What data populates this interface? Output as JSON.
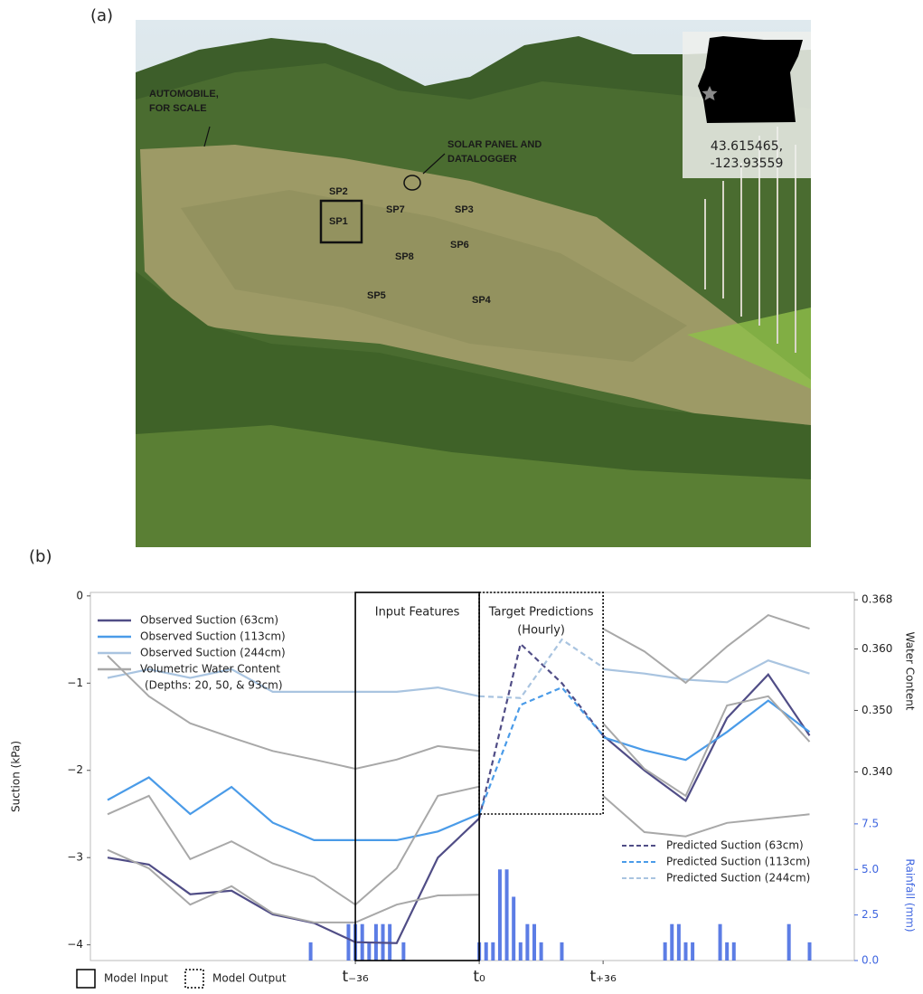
{
  "panel_a": {
    "label": "(a)",
    "annotations": [
      "AUTOMOBILE,",
      "FOR SCALE",
      "SOLAR PANEL AND",
      "DATALOGGER"
    ],
    "sites": [
      "SP2",
      "SP1",
      "SP7",
      "SP3",
      "SP6",
      "SP8",
      "SP5",
      "SP4"
    ],
    "inset": {
      "lat": "43.615465,",
      "lon": "-123.93559"
    }
  },
  "chart_data": {
    "type": "line",
    "panel_label": "(b)",
    "y_label": "Suction (kPa)",
    "y2_label": "Water Content",
    "y3_label": "Rainfall (mm)",
    "input_label": "Input Features",
    "output_label": [
      "Target Predictions",
      "(Hourly)"
    ],
    "model_legend": [
      "Model Input",
      "Model Output"
    ],
    "x": [
      -108,
      -96,
      -84,
      -72,
      -60,
      -48,
      -36,
      -24,
      -12,
      0,
      12,
      24,
      36,
      48,
      60,
      72,
      84,
      96
    ],
    "xlim": [
      -113,
      109
    ],
    "xticks": [
      {
        "value": -36,
        "label": "t₋₃₆"
      },
      {
        "value": 0,
        "label": "t₀"
      },
      {
        "value": 36,
        "label": "t₊₃₆"
      }
    ],
    "ylim": [
      -4.18,
      0.04
    ],
    "yticks": [
      {
        "value": -4,
        "label": "−4"
      },
      {
        "value": -3,
        "label": "−3"
      },
      {
        "value": -2,
        "label": "−2"
      },
      {
        "value": -1,
        "label": "−1"
      },
      0
    ],
    "y2lim": [
      0.3093,
      0.3692
    ],
    "y2ticks": [
      {
        "value": 0.34,
        "label": "0.340"
      },
      {
        "value": 0.35,
        "label": "0.350"
      },
      {
        "value": 0.36,
        "label": "0.360"
      },
      {
        "value": 0.368,
        "label": "0.368"
      }
    ],
    "y3lim": [
      0,
      20.2
    ],
    "y3ticks": [
      {
        "value": 0,
        "label": "0.0"
      },
      {
        "value": 2.5,
        "label": "2.5"
      },
      {
        "value": 5,
        "label": "5.0"
      },
      {
        "value": 7.5,
        "label": "7.5"
      }
    ],
    "series": [
      {
        "name": "Observed Suction (63cm)",
        "color": "#504d86",
        "values": [
          -3.0,
          -3.08,
          -3.42,
          -3.38,
          -3.65,
          -3.75,
          -3.97,
          -3.98,
          -3.0,
          -2.55,
          null,
          null,
          -1.6,
          -2.0,
          -2.35,
          -1.4,
          -0.9,
          -1.6
        ]
      },
      {
        "name": "Observed Suction (113cm)",
        "color": "#4a9be8",
        "values": [
          -2.34,
          -2.08,
          -2.5,
          -2.19,
          -2.6,
          -2.8,
          -2.8,
          -2.8,
          -2.7,
          -2.5,
          null,
          null,
          -1.62,
          -1.77,
          -1.88,
          -1.56,
          -1.2,
          -1.56
        ]
      },
      {
        "name": "Observed Suction (244cm)",
        "color": "#a9c4e0",
        "values": [
          -0.94,
          -0.84,
          -0.94,
          -0.84,
          -1.1,
          -1.1,
          -1.1,
          -1.1,
          -1.05,
          -1.15,
          null,
          null,
          -0.84,
          -0.89,
          -0.96,
          -0.99,
          -0.74,
          -0.89
        ]
      },
      {
        "name": "Volumetric Water Content",
        "detail": "(Depths: 20, 50, & 93cm)",
        "color": "#a8a8a8",
        "axis": "y2",
        "values": [
          [
            0.3589,
            0.3523,
            0.3479,
            0.3456,
            0.3434,
            0.342,
            0.3405,
            0.342,
            0.3442,
            0.3434,
            null,
            null,
            0.3633,
            0.3596,
            0.3545,
            0.3604,
            0.3655,
            0.3633
          ],
          [
            0.3331,
            0.3361,
            0.3258,
            0.3287,
            0.3251,
            0.3229,
            0.3184,
            0.3243,
            0.3361,
            0.3376,
            null,
            null,
            0.3479,
            0.3405,
            0.3361,
            0.3508,
            0.3523,
            0.3449
          ],
          [
            0.3273,
            0.3243,
            0.3184,
            0.3214,
            0.317,
            0.3155,
            0.3155,
            0.3184,
            0.3199,
            0.32,
            null,
            null,
            0.3361,
            0.3302,
            0.3295,
            0.3317,
            0.3324,
            0.3331
          ]
        ]
      },
      {
        "name": "Predicted Suction (63cm)",
        "color": "#504d86",
        "dashed": true,
        "values": [
          null,
          null,
          null,
          null,
          null,
          null,
          null,
          null,
          null,
          -2.55,
          -0.55,
          -1.0,
          -1.6,
          null,
          null,
          null,
          null,
          null
        ]
      },
      {
        "name": "Predicted Suction (113cm)",
        "color": "#4a9be8",
        "dashed": true,
        "values": [
          null,
          null,
          null,
          null,
          null,
          null,
          null,
          null,
          null,
          -2.5,
          -1.25,
          -1.05,
          -1.6,
          null,
          null,
          null,
          null,
          null
        ]
      },
      {
        "name": "Predicted Suction (244cm)",
        "color": "#a9c4e0",
        "dashed": true,
        "values": [
          null,
          null,
          null,
          null,
          null,
          null,
          null,
          null,
          null,
          -1.15,
          -1.17,
          -0.5,
          -0.82,
          null,
          null,
          null,
          null,
          null
        ]
      }
    ],
    "rainfall": {
      "color": "#3f66e0",
      "axis": "y3",
      "x": [
        -49,
        -38,
        -36,
        -34,
        -32,
        -30,
        -28,
        -26,
        -22,
        0,
        2,
        4,
        6,
        8,
        10,
        12,
        14,
        16,
        18,
        24,
        54,
        56,
        58,
        60,
        62,
        70,
        72,
        74,
        90,
        96
      ],
      "values": [
        1,
        2,
        2,
        2,
        1,
        2,
        2,
        2,
        1,
        1,
        1,
        1,
        5,
        5,
        3.5,
        1,
        2,
        2,
        1,
        1,
        1,
        2,
        2,
        1,
        1,
        2,
        1,
        1,
        2,
        1
      ]
    }
  }
}
